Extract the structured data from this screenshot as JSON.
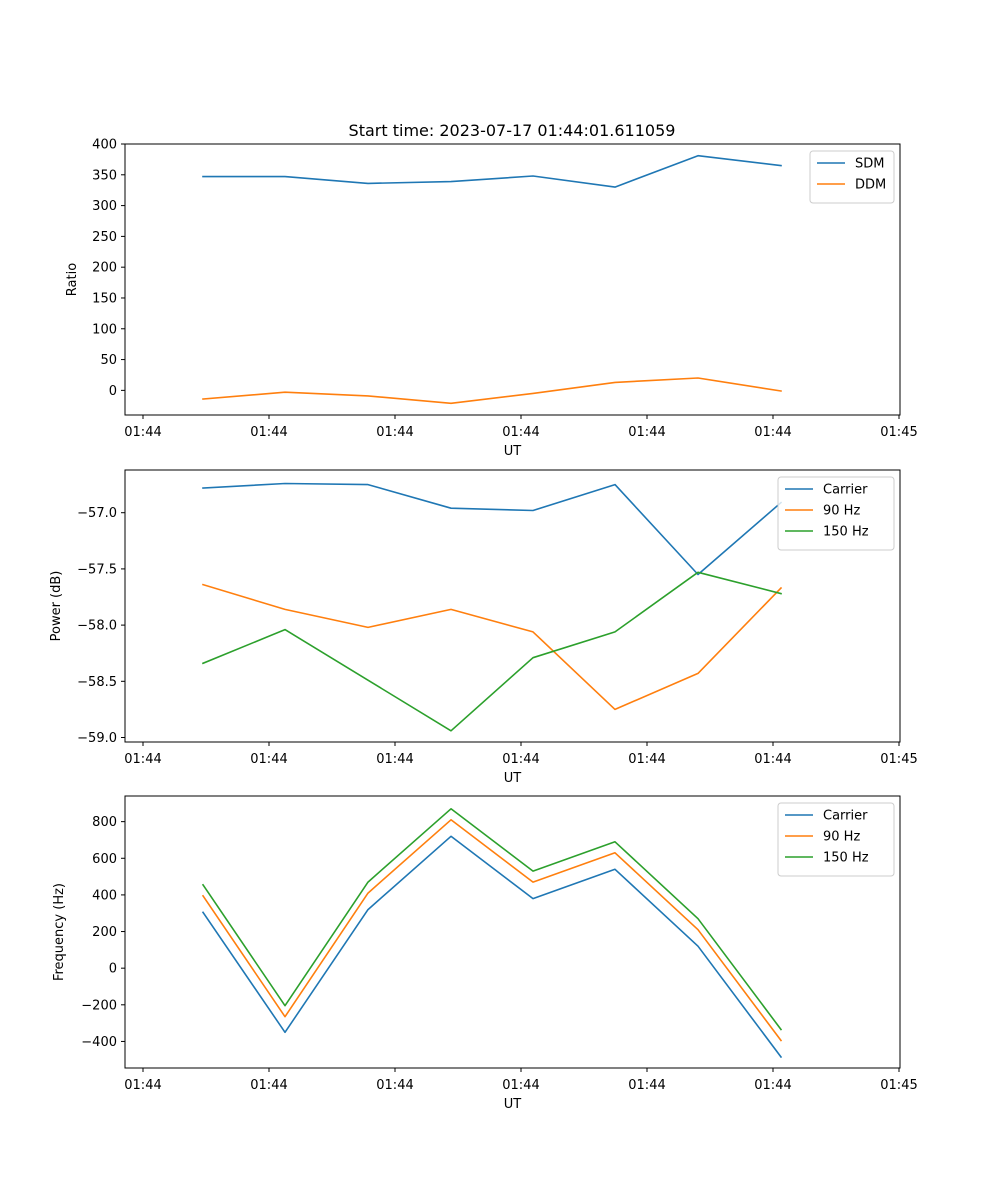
{
  "figure": {
    "title": "Start time: 2023-07-17 01:44:01.611059"
  },
  "chart_data": [
    {
      "type": "line",
      "title": "Start time: 2023-07-17 01:44:01.611059",
      "xlabel": "UT",
      "ylabel": "Ratio",
      "x_tick_labels": [
        "01:44",
        "01:44",
        "01:44",
        "01:44",
        "01:44",
        "01:44",
        "01:45"
      ],
      "y_ticks": [
        0,
        50,
        100,
        150,
        200,
        250,
        300,
        350,
        400
      ],
      "y_tick_labels": [
        "0",
        "50",
        "100",
        "150",
        "200",
        "250",
        "300",
        "350",
        "400"
      ],
      "ylim": [
        -40,
        400
      ],
      "legend_position": "top-right",
      "series": [
        {
          "name": "SDM",
          "color": "#1f77b4",
          "values": [
            347,
            347,
            336,
            339,
            348,
            330,
            381,
            365
          ]
        },
        {
          "name": "DDM",
          "color": "#ff7f0e",
          "values": [
            -14,
            -3,
            -9,
            -21,
            -5,
            13,
            20,
            -1
          ]
        }
      ]
    },
    {
      "type": "line",
      "xlabel": "UT",
      "ylabel": "Power (dB)",
      "x_tick_labels": [
        "01:44",
        "01:44",
        "01:44",
        "01:44",
        "01:44",
        "01:44",
        "01:45"
      ],
      "y_ticks": [
        -59.0,
        -58.5,
        -58.0,
        -57.5,
        -57.0
      ],
      "y_tick_labels": [
        "−59.0",
        "−58.5",
        "−58.0",
        "−57.5",
        "−57.0"
      ],
      "ylim": [
        -59.04,
        -56.62
      ],
      "legend_position": "top-right",
      "series": [
        {
          "name": "Carrier",
          "color": "#1f77b4",
          "values": [
            -56.78,
            -56.74,
            -56.75,
            -56.96,
            -56.98,
            -56.75,
            -57.55,
            -56.91
          ]
        },
        {
          "name": "90 Hz",
          "color": "#ff7f0e",
          "values": [
            -57.64,
            -57.86,
            -58.02,
            -57.86,
            -58.06,
            -58.75,
            -58.43,
            -57.67
          ]
        },
        {
          "name": "150 Hz",
          "color": "#2ca02c",
          "values": [
            -58.34,
            -58.04,
            -58.49,
            -58.94,
            -58.29,
            -58.06,
            -57.53,
            -57.72
          ]
        }
      ]
    },
    {
      "type": "line",
      "xlabel": "UT",
      "ylabel": "Frequency (Hz)",
      "x_tick_labels": [
        "01:44",
        "01:44",
        "01:44",
        "01:44",
        "01:44",
        "01:44",
        "01:45"
      ],
      "y_ticks": [
        -400,
        -200,
        0,
        200,
        400,
        600,
        800
      ],
      "y_tick_labels": [
        "−400",
        "−200",
        "0",
        "200",
        "400",
        "600",
        "800"
      ],
      "ylim": [
        -545,
        940
      ],
      "legend_position": "top-right",
      "series": [
        {
          "name": "Carrier",
          "color": "#1f77b4",
          "values": [
            305,
            -350,
            320,
            720,
            380,
            540,
            120,
            -485
          ]
        },
        {
          "name": "90 Hz",
          "color": "#ff7f0e",
          "values": [
            395,
            -265,
            410,
            810,
            470,
            630,
            210,
            -395
          ]
        },
        {
          "name": "150 Hz",
          "color": "#2ca02c",
          "values": [
            455,
            -205,
            470,
            870,
            530,
            690,
            270,
            -335
          ]
        }
      ]
    }
  ]
}
